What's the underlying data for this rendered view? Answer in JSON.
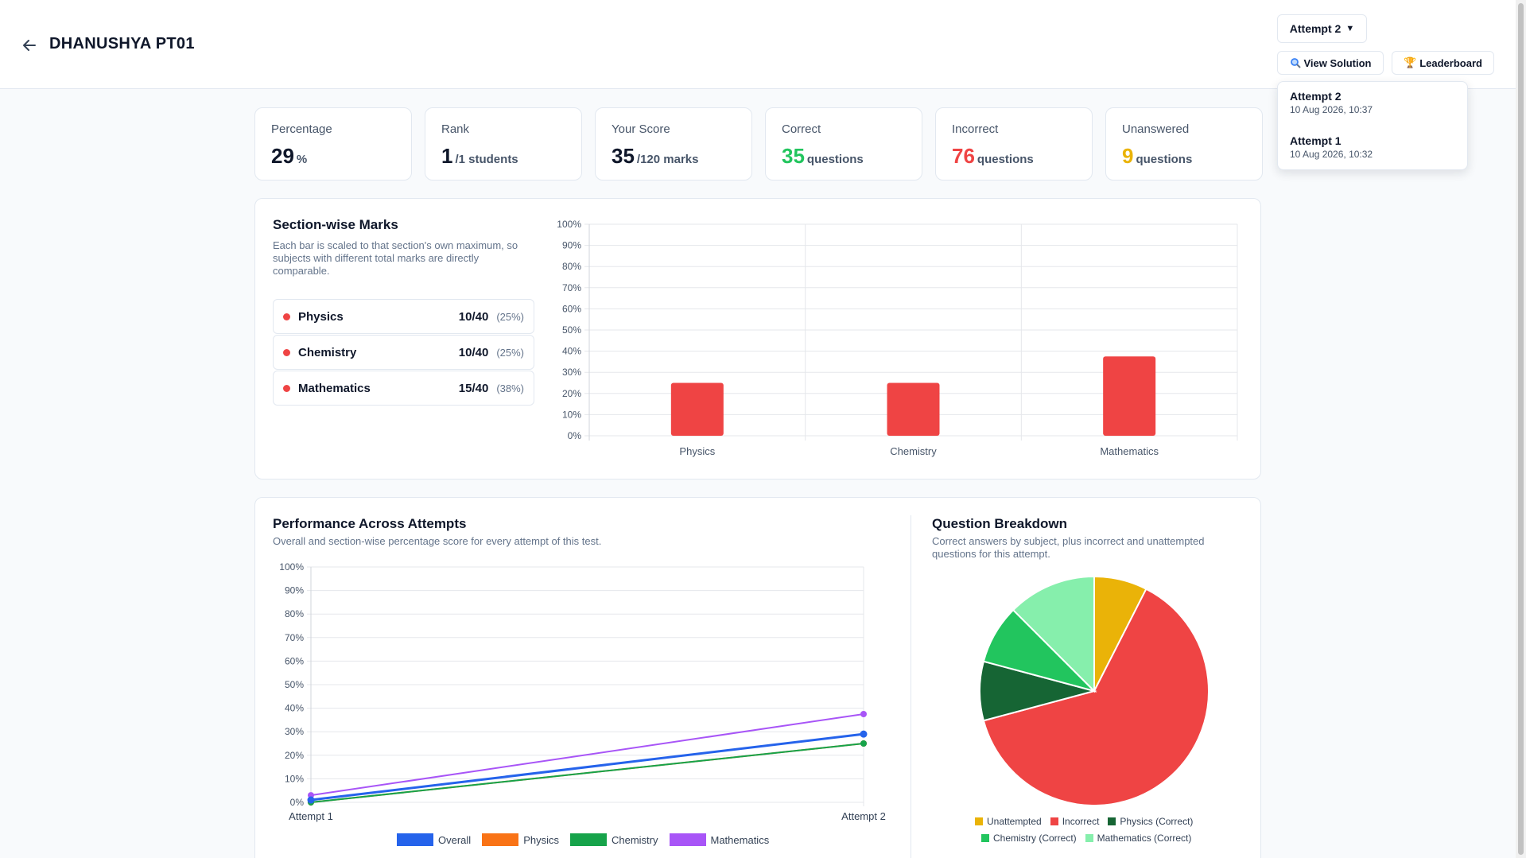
{
  "header": {
    "title": "DHANUSHYA PT01",
    "attempt_select": "Attempt 2",
    "view_solution": "View Solution",
    "leaderboard": "Leaderboard"
  },
  "attempts_dropdown": [
    {
      "name": "Attempt 2",
      "date": "10 Aug 2026, 10:37"
    },
    {
      "name": "Attempt 1",
      "date": "10 Aug 2026, 10:32"
    }
  ],
  "stats": [
    {
      "label": "Percentage",
      "value": "29",
      "unit": "%",
      "color": "#0f172a"
    },
    {
      "label": "Rank",
      "value": "1",
      "unit": "/1 students",
      "color": "#0f172a"
    },
    {
      "label": "Your Score",
      "value": "35",
      "unit": "/120 marks",
      "color": "#0f172a"
    },
    {
      "label": "Correct",
      "value": "35",
      "unit": "questions",
      "color": "#22c55e"
    },
    {
      "label": "Incorrect",
      "value": "76",
      "unit": "questions",
      "color": "#ef4444"
    },
    {
      "label": "Unanswered",
      "value": "9",
      "unit": "questions",
      "color": "#eab308"
    }
  ],
  "section_wise": {
    "title": "Section-wise Marks",
    "description": "Each bar is scaled to that section's own maximum, so subjects with different total marks are directly comparable.",
    "subjects": [
      {
        "name": "Physics",
        "score": "10/40",
        "pct": "(25%)"
      },
      {
        "name": "Chemistry",
        "score": "10/40",
        "pct": "(25%)"
      },
      {
        "name": "Mathematics",
        "score": "15/40",
        "pct": "(38%)"
      }
    ]
  },
  "performance": {
    "title": "Performance Across Attempts",
    "description": "Overall and section-wise percentage score for every attempt of this test."
  },
  "breakdown": {
    "title": "Question Breakdown",
    "description": "Correct answers by subject, plus incorrect and unattempted questions for this attempt."
  },
  "chart_data": [
    {
      "type": "bar",
      "categories": [
        "Physics",
        "Chemistry",
        "Mathematics"
      ],
      "values": [
        25,
        25,
        37.5
      ],
      "ylim": [
        0,
        100
      ],
      "yticks": [
        "0%",
        "10%",
        "20%",
        "30%",
        "40%",
        "50%",
        "60%",
        "70%",
        "80%",
        "90%",
        "100%"
      ],
      "color": "#ef4444",
      "grid": true
    },
    {
      "type": "line",
      "x": [
        "Attempt 1",
        "Attempt 2"
      ],
      "ylim": [
        0,
        100
      ],
      "yticks": [
        "0%",
        "10%",
        "20%",
        "30%",
        "40%",
        "50%",
        "60%",
        "70%",
        "80%",
        "90%",
        "100%"
      ],
      "series": [
        {
          "name": "Overall",
          "values": [
            1,
            29
          ],
          "color": "#2563eb"
        },
        {
          "name": "Physics",
          "values": [
            0,
            25
          ],
          "color": "#f97316"
        },
        {
          "name": "Chemistry",
          "values": [
            0,
            25
          ],
          "color": "#16a34a"
        },
        {
          "name": "Mathematics",
          "values": [
            3,
            37.5
          ],
          "color": "#a855f7"
        }
      ],
      "legend": "bottom"
    },
    {
      "type": "pie",
      "slices": [
        {
          "label": "Unattempted",
          "value": 9,
          "color": "#eab308"
        },
        {
          "label": "Incorrect",
          "value": 76,
          "color": "#ef4444"
        },
        {
          "label": "Physics (Correct)",
          "value": 10,
          "color": "#166534"
        },
        {
          "label": "Chemistry (Correct)",
          "value": 10,
          "color": "#22c55e"
        },
        {
          "label": "Mathematics (Correct)",
          "value": 15,
          "color": "#86efac"
        }
      ],
      "legend": "bottom"
    }
  ]
}
